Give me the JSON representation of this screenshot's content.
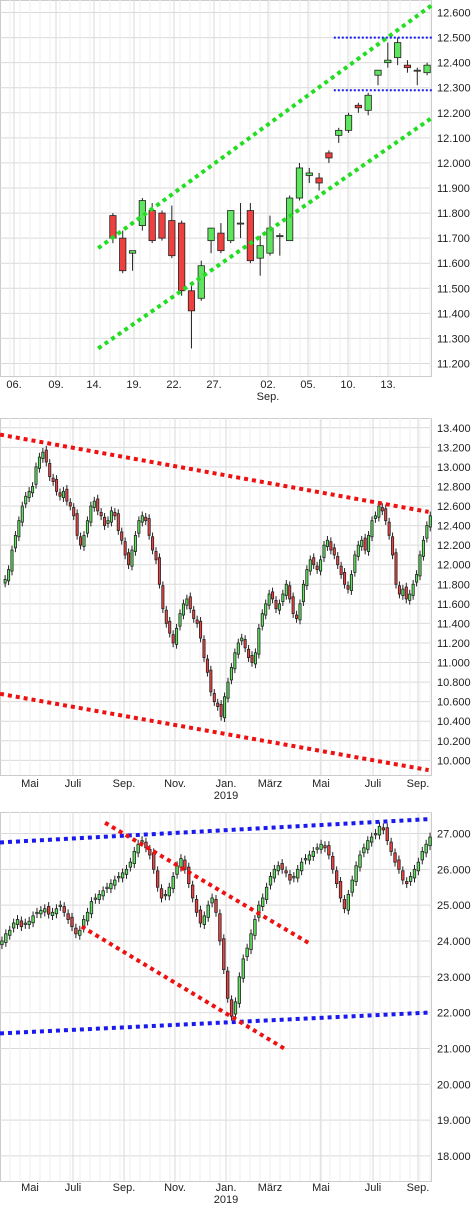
{
  "colors": {
    "up": "#5ee45e",
    "down": "#ef4040",
    "candle_border": "#222222",
    "grid": "#d9d9d9",
    "green_line": "#22dd22",
    "red_line": "#ee1111",
    "blue_line": "#1a1aee",
    "dotted_blue": "#1a1aee"
  },
  "chart_data": [
    {
      "type": "candlestick",
      "ylim": [
        11150,
        12650
      ],
      "y_ticks": [
        11200,
        11300,
        11400,
        11500,
        11600,
        11700,
        11800,
        11900,
        12000,
        12100,
        12200,
        12300,
        12400,
        12500,
        12600
      ],
      "y_tick_labels": [
        "11.200",
        "11.300",
        "11.400",
        "11.500",
        "11.600",
        "11.700",
        "11.800",
        "11.900",
        "12.000",
        "12.100",
        "12.200",
        "12.300",
        "12.400",
        "12.500",
        "12.600"
      ],
      "x_labels": [
        "06.",
        "09.",
        "14.",
        "19.",
        "22.",
        "27.",
        "02.",
        "05.",
        "10.",
        "13."
      ],
      "x_sublabel": "Sep.",
      "candles": [
        {
          "o": 11790,
          "h": 11800,
          "l": 11680,
          "c": 11700
        },
        {
          "o": 11700,
          "h": 11730,
          "l": 11560,
          "c": 11570
        },
        {
          "o": 11640,
          "h": 11650,
          "l": 11570,
          "c": 11650
        },
        {
          "o": 11750,
          "h": 11860,
          "l": 11730,
          "c": 11850
        },
        {
          "o": 11810,
          "h": 11840,
          "l": 11680,
          "c": 11690
        },
        {
          "o": 11800,
          "h": 11810,
          "l": 11690,
          "c": 11700
        },
        {
          "o": 11770,
          "h": 11830,
          "l": 11620,
          "c": 11630
        },
        {
          "o": 11760,
          "h": 11770,
          "l": 11470,
          "c": 11490
        },
        {
          "o": 11490,
          "h": 11520,
          "l": 11260,
          "c": 11410
        },
        {
          "o": 11460,
          "h": 11610,
          "l": 11450,
          "c": 11590
        },
        {
          "o": 11690,
          "h": 11740,
          "l": 11640,
          "c": 11740
        },
        {
          "o": 11720,
          "h": 11760,
          "l": 11640,
          "c": 11650
        },
        {
          "o": 11690,
          "h": 11810,
          "l": 11680,
          "c": 11810
        },
        {
          "o": 11760,
          "h": 11840,
          "l": 11700,
          "c": 11760
        },
        {
          "o": 11810,
          "h": 11840,
          "l": 11600,
          "c": 11610
        },
        {
          "o": 11620,
          "h": 11710,
          "l": 11550,
          "c": 11670
        },
        {
          "o": 11640,
          "h": 11790,
          "l": 11630,
          "c": 11740
        },
        {
          "o": 11710,
          "h": 11720,
          "l": 11630,
          "c": 11710
        },
        {
          "o": 11690,
          "h": 11870,
          "l": 11690,
          "c": 11860
        },
        {
          "o": 11860,
          "h": 12000,
          "l": 11850,
          "c": 11980
        },
        {
          "o": 11950,
          "h": 11980,
          "l": 11920,
          "c": 11960
        },
        {
          "o": 11940,
          "h": 11960,
          "l": 11890,
          "c": 11920
        },
        {
          "o": 12040,
          "h": 12050,
          "l": 12000,
          "c": 12020
        },
        {
          "o": 12110,
          "h": 12140,
          "l": 12080,
          "c": 12130
        },
        {
          "o": 12130,
          "h": 12200,
          "l": 12120,
          "c": 12190
        },
        {
          "o": 12230,
          "h": 12240,
          "l": 12200,
          "c": 12220
        },
        {
          "o": 12210,
          "h": 12280,
          "l": 12190,
          "c": 12270
        },
        {
          "o": 12350,
          "h": 12370,
          "l": 12310,
          "c": 12370
        },
        {
          "o": 12400,
          "h": 12480,
          "l": 12380,
          "c": 12410
        },
        {
          "o": 12420,
          "h": 12500,
          "l": 12390,
          "c": 12480
        },
        {
          "o": 12390,
          "h": 12410,
          "l": 12360,
          "c": 12380
        },
        {
          "o": 12370,
          "h": 12380,
          "l": 12310,
          "c": 12370
        },
        {
          "o": 12360,
          "h": 12400,
          "l": 12350,
          "c": 12390
        }
      ],
      "lines": [
        {
          "type": "green-channel-upper",
          "from": [
            10,
            11660
          ],
          "to": [
            44,
            12630
          ]
        },
        {
          "type": "green-channel-lower",
          "from": [
            10,
            11260
          ],
          "to": [
            44,
            12180
          ]
        },
        {
          "type": "blue-level",
          "from": [
            34,
            12500
          ],
          "to": [
            44,
            12500
          ]
        },
        {
          "type": "blue-level",
          "from": [
            34,
            12290
          ],
          "to": [
            44,
            12290
          ]
        }
      ]
    },
    {
      "type": "candlestick",
      "ylim": [
        9850,
        13500
      ],
      "y_ticks": [
        10000,
        10200,
        10400,
        10600,
        10800,
        11000,
        11200,
        11400,
        11600,
        11800,
        12000,
        12200,
        12400,
        12600,
        12800,
        13000,
        13200,
        13400
      ],
      "y_tick_labels": [
        "10.000",
        "10.200",
        "10.400",
        "10.600",
        "10.800",
        "11.000",
        "11.200",
        "11.400",
        "11.600",
        "11.800",
        "12.000",
        "12.200",
        "12.400",
        "12.600",
        "12.800",
        "13.000",
        "13.200",
        "13.400"
      ],
      "x_labels": [
        "Mai",
        "Juli",
        "Sep.",
        "Nov.",
        "Jan.",
        "März",
        "Mai",
        "Juli",
        "Sep."
      ],
      "x_sublabel": "2019",
      "series_closes": [
        11850,
        11950,
        12150,
        12300,
        12450,
        12600,
        12700,
        12750,
        12800,
        13000,
        13100,
        13150,
        13050,
        12900,
        12850,
        12750,
        12700,
        12750,
        12650,
        12600,
        12500,
        12300,
        12200,
        12300,
        12450,
        12600,
        12650,
        12550,
        12500,
        12400,
        12450,
        12550,
        12500,
        12350,
        12250,
        12100,
        12000,
        12150,
        12300,
        12450,
        12500,
        12450,
        12300,
        12150,
        12050,
        11800,
        11550,
        11400,
        11300,
        11200,
        11350,
        11500,
        11600,
        11650,
        11550,
        11450,
        11400,
        11250,
        11050,
        10900,
        10700,
        10600,
        10550,
        10450,
        10650,
        10800,
        10950,
        11100,
        11200,
        11250,
        11150,
        11050,
        11000,
        11100,
        11350,
        11500,
        11600,
        11700,
        11650,
        11550,
        11600,
        11700,
        11800,
        11650,
        11500,
        11450,
        11600,
        11800,
        11950,
        12050,
        12000,
        11950,
        12050,
        12200,
        12250,
        12150,
        12100,
        12000,
        11900,
        11800,
        11750,
        11900,
        12100,
        12200,
        12250,
        12150,
        12300,
        12450,
        12500,
        12600,
        12550,
        12450,
        12300,
        12100,
        11800,
        11700,
        11750,
        11650,
        11700,
        11800,
        11900,
        12100,
        12250,
        12400,
        12500
      ],
      "lines": [
        {
          "type": "red-resistance",
          "from": [
            0,
            13330
          ],
          "to": [
            125,
            12540
          ]
        },
        {
          "type": "red-support",
          "from": [
            0,
            10680
          ],
          "to": [
            125,
            9900
          ]
        }
      ]
    },
    {
      "type": "candlestick",
      "ylim": [
        17300,
        27600
      ],
      "y_ticks": [
        18000,
        19000,
        20000,
        21000,
        22000,
        23000,
        24000,
        25000,
        26000,
        27000
      ],
      "y_tick_labels": [
        "18.000",
        "19.000",
        "20.000",
        "21.000",
        "22.000",
        "23.000",
        "24.000",
        "25.000",
        "26.000",
        "27.000"
      ],
      "x_labels": [
        "Mai",
        "Juli",
        "Sep.",
        "Nov.",
        "Jan.",
        "März",
        "Mai",
        "Juli",
        "Sep."
      ],
      "x_sublabel": "2019",
      "series_closes": [
        24000,
        24200,
        24300,
        24500,
        24600,
        24400,
        24500,
        24550,
        24700,
        24800,
        24850,
        24900,
        24750,
        24800,
        24900,
        25000,
        24800,
        24600,
        24400,
        24200,
        24300,
        24600,
        24800,
        25100,
        25200,
        25300,
        25400,
        25500,
        25600,
        25700,
        25800,
        25900,
        26000,
        26200,
        26500,
        26700,
        26800,
        26600,
        26400,
        26000,
        25500,
        25200,
        25300,
        25500,
        25800,
        26100,
        26300,
        26000,
        25600,
        25200,
        24800,
        24500,
        24700,
        25000,
        25200,
        24800,
        24000,
        23200,
        22400,
        21900,
        22300,
        23000,
        23500,
        23800,
        24200,
        24600,
        25000,
        25200,
        25500,
        25800,
        26000,
        26100,
        26000,
        25900,
        25700,
        25800,
        26000,
        26200,
        26300,
        26400,
        26500,
        26600,
        26700,
        26600,
        26400,
        26000,
        25600,
        25200,
        24900,
        25300,
        25700,
        26100,
        26400,
        26600,
        26800,
        26900,
        27000,
        27200,
        27100,
        26800,
        26500,
        26200,
        26000,
        25700,
        25600,
        25800,
        26000,
        26200,
        26500,
        26700,
        26900
      ],
      "lines": [
        {
          "type": "blue-upper",
          "from": [
            0,
            26750
          ],
          "to": [
            110,
            27400
          ]
        },
        {
          "type": "blue-lower",
          "from": [
            0,
            21420
          ],
          "to": [
            110,
            22000
          ]
        },
        {
          "type": "red-falling-upper",
          "from": [
            27,
            27300
          ],
          "to": [
            80,
            23900
          ]
        },
        {
          "type": "red-falling-lower",
          "from": [
            21,
            24400
          ],
          "to": [
            73,
            21000
          ]
        }
      ]
    }
  ]
}
